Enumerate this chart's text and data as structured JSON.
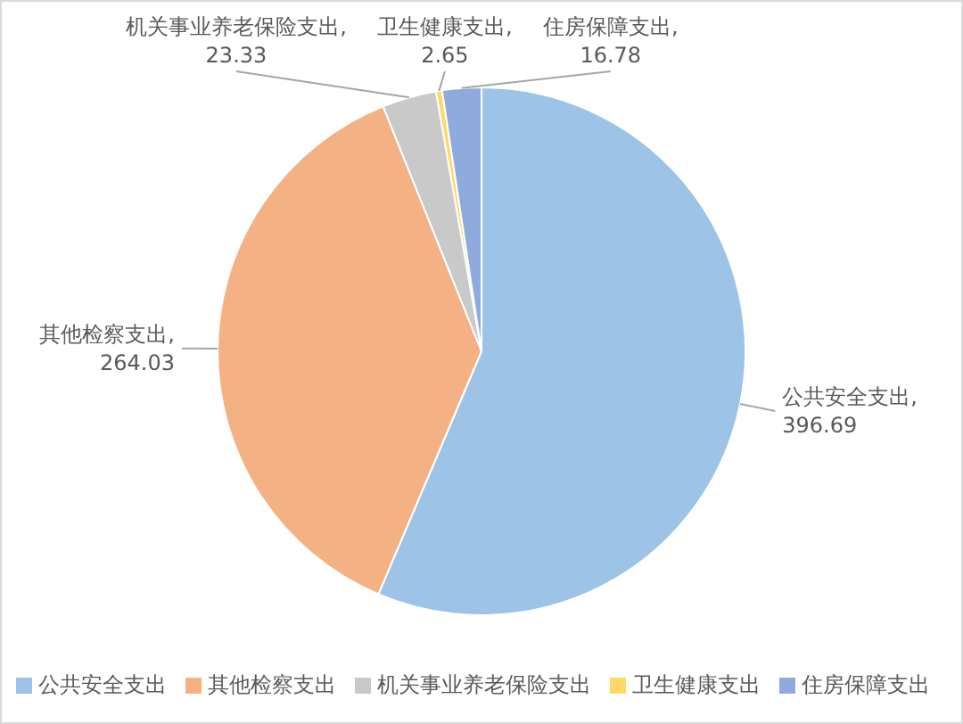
{
  "chart_data": {
    "type": "pie",
    "categories": [
      "公共安全支出",
      "其他检察支出",
      "机关事业养老保险支出",
      "卫生健康支出",
      "住房保障支出"
    ],
    "values": [
      396.69,
      264.03,
      23.33,
      2.65,
      16.78
    ],
    "value_labels": [
      "公共安全支出, 396.69",
      "其他检察支出, 264.03",
      "机关事业养老保险支出, 23.33",
      "卫生健康支出, 2.65",
      "住房保障支出, 16.78"
    ],
    "colors": [
      "#9dc3e6",
      "#f4b183",
      "#c9c9c9",
      "#ffd966",
      "#8faadc"
    ],
    "legend": "bottom"
  }
}
